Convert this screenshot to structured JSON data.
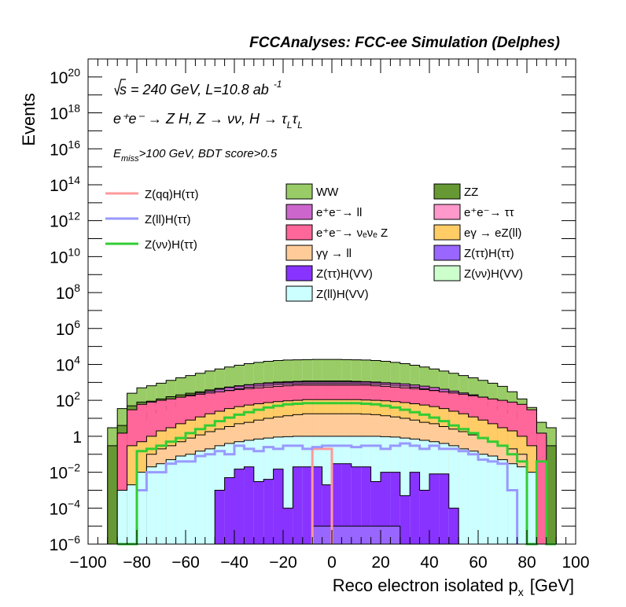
{
  "header": {
    "title": "FCCAnalyses: FCC-ee Simulation (Delphes)"
  },
  "annotations": {
    "energy_prefix": "√s",
    "energy_rest": " = 240 GeV, L=10.8 ab",
    "energy_sup": "-1",
    "process": "e⁺e⁻ → Z H, Z → νν, H → τ",
    "process_sub1": "L",
    "process_tau2": "τ",
    "process_sub2": "L",
    "cut_prefix": "E",
    "cut_sub": "miss",
    "cut_rest": ">100 GeV, BDT score>0.5"
  },
  "colors": {
    "WW": "#99cc66",
    "ZZ": "#669933",
    "ee_ll": "#cc66cc",
    "ee_tautau": "#ff99cc",
    "ee_nunuZ": "#ff6699",
    "egamma_eZ": "#ffcc66",
    "gammagamma_ll": "#ffcc99",
    "Ztautau_Htautau": "#9966ff",
    "Ztautau_HVV": "#8833ff",
    "Znunu_HVV": "#ccffcc",
    "Zll_HVV": "#ccffff",
    "sig_qq": "#ff9999",
    "sig_ll": "#9999ff",
    "sig_nunu": "#33cc33"
  },
  "chart_data": {
    "type": "histogram",
    "title": "FCCAnalyses: FCC-ee Simulation (Delphes)",
    "xlabel": "Reco electron isolated p",
    "xlabel_sub": "x",
    "xlabel_unit": "[GeV]",
    "ylabel": "Events",
    "xlim": [
      -100,
      100
    ],
    "ylim": [
      1e-06,
      1e+21
    ],
    "yscale": "log",
    "bin_width": 4,
    "x_ticks": [
      "−100",
      "−80",
      "−60",
      "−40",
      "−20",
      "0",
      "20",
      "40",
      "60",
      "80",
      "100"
    ],
    "y_ticks": [
      {
        "base": "10",
        "exp": "−6",
        "value": 1e-06
      },
      {
        "base": "10",
        "exp": "−4",
        "value": 0.0001
      },
      {
        "base": "10",
        "exp": "−2",
        "value": 0.01
      },
      {
        "base": "1",
        "exp": "",
        "value": 1
      },
      {
        "base": "10",
        "exp": "2",
        "value": 100.0
      },
      {
        "base": "10",
        "exp": "4",
        "value": 10000.0
      },
      {
        "base": "10",
        "exp": "6",
        "value": 1000000.0
      },
      {
        "base": "10",
        "exp": "8",
        "value": 100000000.0
      },
      {
        "base": "10",
        "exp": "10",
        "value": 10000000000.0
      },
      {
        "base": "10",
        "exp": "12",
        "value": 1000000000000.0
      },
      {
        "base": "10",
        "exp": "14",
        "value": 100000000000000.0
      },
      {
        "base": "10",
        "exp": "16",
        "value": 1e+16
      },
      {
        "base": "10",
        "exp": "18",
        "value": 1e+18
      },
      {
        "base": "10",
        "exp": "20",
        "value": 1e+20
      }
    ],
    "stack_envelopes": [
      {
        "name": "WW",
        "color_key": "WW",
        "x": [
          -92,
          -88,
          -84,
          -80,
          -76,
          -72,
          -68,
          -64,
          -60,
          -56,
          -52,
          -48,
          -44,
          -40,
          -36,
          -32,
          -28,
          -24,
          -20,
          -16,
          -12,
          -8,
          -4,
          0,
          4,
          8,
          12,
          16,
          20,
          24,
          28,
          32,
          36,
          40,
          44,
          48,
          52,
          56,
          60,
          64,
          68,
          72,
          76,
          80,
          84,
          88
        ],
        "values": [
          3,
          35,
          250,
          500,
          650,
          900,
          1300,
          1800,
          2400,
          3200,
          4300,
          5600,
          7200,
          9000,
          11000,
          13000,
          15000,
          16500,
          17500,
          18000,
          18500,
          19000,
          19000,
          19000,
          18500,
          18000,
          17500,
          16500,
          15000,
          13000,
          11000,
          9000,
          7200,
          5600,
          4300,
          3200,
          2400,
          1800,
          1300,
          900,
          600,
          300,
          120,
          40,
          6,
          3
        ]
      },
      {
        "name": "ZZ (cumulative incl. e+e-→ll, e+e-→ττ)",
        "color_key": "ZZ",
        "x": [
          -92,
          -88,
          -84,
          -80,
          -76,
          -72,
          -68,
          -64,
          -60,
          -56,
          -52,
          -48,
          -44,
          -40,
          -36,
          -32,
          -28,
          -24,
          -20,
          -16,
          -12,
          -8,
          -4,
          0,
          4,
          8,
          12,
          16,
          20,
          24,
          28,
          32,
          36,
          40,
          44,
          48,
          52,
          56,
          60,
          64,
          68,
          72,
          76,
          80,
          84,
          88
        ],
        "values": [
          0.3,
          4,
          50,
          80,
          90,
          120,
          160,
          200,
          250,
          300,
          380,
          460,
          550,
          650,
          750,
          850,
          950,
          1050,
          1100,
          1150,
          1200,
          1200,
          1200,
          1200,
          1200,
          1150,
          1100,
          1050,
          950,
          850,
          750,
          650,
          550,
          460,
          380,
          300,
          250,
          200,
          150,
          110,
          80,
          50,
          20,
          8,
          1,
          0.3
        ]
      },
      {
        "name": "e+e- → ll (cumulative)",
        "color_key": "ee_ll",
        "x": [
          -84,
          -80,
          -76,
          -72,
          -68,
          -64,
          -60,
          -56,
          -52,
          -48,
          -44,
          -40,
          -36,
          -32,
          -28,
          -24,
          -20,
          -16,
          -12,
          -8,
          -4,
          0,
          4,
          8,
          12,
          16,
          20,
          24,
          28,
          32,
          36,
          40,
          44,
          48,
          52,
          56,
          60,
          64,
          68,
          72,
          76,
          80
        ],
        "values": [
          8,
          40,
          60,
          80,
          110,
          150,
          200,
          260,
          330,
          420,
          520,
          620,
          720,
          820,
          900,
          950,
          1000,
          1050,
          1050,
          1050,
          1050,
          1050,
          1050,
          1050,
          1050,
          1000,
          950,
          900,
          820,
          720,
          620,
          520,
          420,
          330,
          260,
          200,
          150,
          110,
          80,
          60,
          40,
          8
        ]
      },
      {
        "name": "e+e- → ττ (cumulative)",
        "color_key": "ee_tautau",
        "x": [
          -84,
          -80,
          -76,
          -72,
          -68,
          -64,
          -60,
          -56,
          -52,
          -48,
          -44,
          -40,
          -36,
          -32,
          -28,
          -24,
          -20,
          -16,
          -12,
          -8,
          -4,
          0,
          4,
          8,
          12,
          16,
          20,
          24,
          28,
          32,
          36,
          40,
          44,
          48,
          52,
          56,
          60,
          64,
          68,
          72,
          76,
          80
        ],
        "values": [
          1,
          8,
          20,
          30,
          45,
          70,
          100,
          150,
          200,
          280,
          360,
          450,
          540,
          630,
          700,
          760,
          800,
          830,
          850,
          850,
          850,
          850,
          850,
          850,
          830,
          800,
          760,
          700,
          630,
          540,
          450,
          360,
          280,
          200,
          150,
          100,
          70,
          45,
          30,
          20,
          8,
          1
        ]
      },
      {
        "name": "e+e- → ν_e ν_e Z (cumulative)",
        "color_key": "ee_nunuZ",
        "x": [
          -88,
          -84,
          -80,
          -76,
          -72,
          -68,
          -64,
          -60,
          -56,
          -52,
          -48,
          -44,
          -40,
          -36,
          -32,
          -28,
          -24,
          -20,
          -16,
          -12,
          -8,
          -4,
          0,
          4,
          8,
          12,
          16,
          20,
          24,
          28,
          32,
          36,
          40,
          44,
          48,
          52,
          56,
          60,
          64,
          68,
          72,
          76,
          80,
          84
        ],
        "values": [
          1.5,
          30,
          60,
          80,
          100,
          120,
          150,
          180,
          220,
          260,
          300,
          350,
          400,
          450,
          500,
          550,
          600,
          650,
          700,
          700,
          700,
          700,
          700,
          700,
          700,
          700,
          650,
          600,
          550,
          500,
          450,
          400,
          350,
          300,
          260,
          220,
          180,
          150,
          120,
          100,
          80,
          60,
          30,
          1.5
        ]
      },
      {
        "name": "eγ → eZ(ll) (cumulative)",
        "color_key": "egamma_eZ",
        "x": [
          -84,
          -80,
          -76,
          -72,
          -68,
          -64,
          -60,
          -56,
          -52,
          -48,
          -44,
          -40,
          -36,
          -32,
          -28,
          -24,
          -20,
          -16,
          -12,
          -8,
          -4,
          0,
          4,
          8,
          12,
          16,
          20,
          24,
          28,
          32,
          36,
          40,
          44,
          48,
          52,
          56,
          60,
          64,
          68,
          72,
          76,
          80
        ],
        "values": [
          0.3,
          0.5,
          1,
          2,
          3,
          5,
          8,
          12,
          18,
          25,
          35,
          45,
          55,
          65,
          75,
          85,
          95,
          100,
          110,
          110,
          110,
          110,
          110,
          110,
          105,
          100,
          95,
          85,
          75,
          65,
          55,
          45,
          35,
          25,
          18,
          12,
          8,
          5,
          3,
          2,
          1,
          0.3
        ]
      },
      {
        "name": "γγ → ll (cumulative)",
        "color_key": "gammagamma_ll",
        "x": [
          -76,
          -72,
          -68,
          -64,
          -60,
          -56,
          -52,
          -48,
          -44,
          -40,
          -36,
          -32,
          -28,
          -24,
          -20,
          -16,
          -12,
          -8,
          -4,
          0,
          4,
          8,
          12,
          16,
          20,
          24,
          28,
          32,
          36,
          40,
          44,
          48,
          52,
          56,
          60,
          64,
          68,
          72,
          76
        ],
        "values": [
          0.1,
          0.2,
          0.3,
          0.5,
          0.8,
          1.2,
          1.8,
          2.5,
          3.5,
          5,
          6,
          8,
          10,
          12,
          14,
          16,
          18,
          18,
          18,
          18,
          18,
          18,
          17,
          16,
          14,
          12,
          10,
          8,
          6,
          5,
          3.5,
          2.5,
          1.8,
          1.2,
          0.8,
          0.5,
          0.3,
          0.2,
          0.1
        ]
      },
      {
        "name": "Z(ll)H(VV) (cumulative)",
        "color_key": "Zll_HVV",
        "x": [
          -88,
          -84,
          -80,
          -76,
          -72,
          -68,
          -64,
          -60,
          -56,
          -52,
          -48,
          -44,
          -40,
          -36,
          -32,
          -28,
          -24,
          -20,
          -16,
          -12,
          -8,
          -4,
          0,
          4,
          8,
          12,
          16,
          20,
          24,
          28,
          32,
          36,
          40,
          44,
          48,
          52,
          56,
          60,
          64,
          68,
          72,
          76,
          80
        ],
        "values": [
          0.001,
          0.002,
          0.01,
          0.02,
          0.03,
          0.05,
          0.08,
          0.1,
          0.15,
          0.2,
          0.3,
          0.4,
          0.5,
          0.6,
          0.7,
          0.8,
          0.9,
          0.95,
          1,
          1,
          1,
          1,
          1,
          1,
          1,
          1,
          1,
          0.95,
          0.9,
          0.8,
          0.7,
          0.6,
          0.5,
          0.4,
          0.3,
          0.2,
          0.15,
          0.1,
          0.08,
          0.05,
          0.03,
          0.02,
          0.01
        ]
      },
      {
        "name": "Z(ττ)H(VV)",
        "color_key": "Ztautau_HVV",
        "x": [
          -48,
          -44,
          -40,
          -36,
          -32,
          -28,
          -24,
          -20,
          -16,
          -12,
          -8,
          -4,
          0,
          4,
          8,
          12,
          16,
          20,
          24,
          28,
          32,
          36,
          40,
          44,
          48
        ],
        "values": [
          0.001,
          0.005,
          0.015,
          0.02,
          0.003,
          0.004,
          0.015,
          0.0001,
          0.02,
          0.02,
          0.02,
          0.002,
          0.03,
          0.03,
          0.02,
          0.02,
          0.003,
          0.01,
          0.01,
          0.0005,
          0.01,
          0.001,
          0.008,
          0.008,
          0.0001
        ]
      },
      {
        "name": "Z(ττ)H(ττ)",
        "color_key": "Ztautau_Htautau",
        "x": [
          -8,
          -4,
          0,
          4,
          8,
          12,
          16,
          20,
          24
        ],
        "values": [
          1e-05,
          1e-05,
          1e-05,
          1e-05,
          1e-05,
          1e-05,
          1e-05,
          1e-05,
          1e-05
        ]
      }
    ],
    "signal_lines": [
      {
        "name": "Z(qq)H(ττ)",
        "color_key": "sig_qq",
        "x": [
          -8,
          -4
        ],
        "values": [
          0.2,
          0.2
        ]
      },
      {
        "name": "Z(ll)H(ττ)",
        "color_key": "sig_ll",
        "x": [
          -80,
          -76,
          -72,
          -68,
          -64,
          -60,
          -56,
          -52,
          -48,
          -44,
          -40,
          -36,
          -32,
          -28,
          -24,
          -20,
          -16,
          -12,
          -8,
          -4,
          0,
          4,
          8,
          12,
          16,
          20,
          24,
          28,
          32,
          36,
          40,
          44,
          48,
          52,
          56,
          60,
          64,
          68,
          72
        ],
        "values": [
          0.001,
          0.01,
          0.01,
          0.03,
          0.04,
          0.04,
          0.08,
          0.1,
          0.15,
          0.1,
          0.3,
          0.2,
          0.15,
          0.25,
          0.2,
          0.3,
          0.3,
          0.2,
          0.25,
          0.3,
          0.3,
          0.3,
          0.25,
          0.3,
          0.3,
          0.2,
          0.3,
          0.4,
          0.3,
          0.2,
          0.3,
          0.2,
          0.2,
          0.15,
          0.1,
          0.05,
          0.04,
          0.03,
          0.001
        ]
      },
      {
        "name": "Z(νν)H(ττ)",
        "color_key": "sig_nunu",
        "x": [
          -88,
          -84,
          -80,
          -76,
          -72,
          -68,
          -64,
          -60,
          -56,
          -52,
          -48,
          -44,
          -40,
          -36,
          -32,
          -28,
          -24,
          -20,
          -16,
          -12,
          -8,
          -4,
          0,
          4,
          8,
          12,
          16,
          20,
          24,
          28,
          32,
          36,
          40,
          44,
          48,
          52,
          56,
          60,
          64,
          68,
          72,
          76,
          80,
          84,
          88
        ],
        "values": [
          1e-06,
          1e-06,
          0.15,
          0.2,
          0.3,
          0.5,
          0.8,
          1.5,
          2.5,
          4,
          7,
          11,
          16,
          22,
          30,
          40,
          50,
          60,
          65,
          70,
          70,
          70,
          70,
          70,
          70,
          65,
          60,
          50,
          40,
          30,
          22,
          16,
          11,
          7,
          4,
          2.5,
          1.5,
          0.8,
          0.5,
          0.3,
          0.1,
          0.04,
          1e-06,
          0.04,
          1e-06
        ]
      }
    ],
    "legend_left": [
      {
        "label": "Z(qq)H(ττ)",
        "color_key": "sig_qq"
      },
      {
        "label": "Z(ll)H(ττ)",
        "color_key": "sig_ll"
      },
      {
        "label": "Z(νν)H(ττ)",
        "color_key": "sig_nunu"
      }
    ],
    "legend_right": [
      {
        "label": "WW",
        "color_key": "WW"
      },
      {
        "label": "ZZ",
        "color_key": "ZZ"
      },
      {
        "label": "e⁺e⁻→ ll",
        "color_key": "ee_ll"
      },
      {
        "label": "e⁺e⁻→ ττ",
        "color_key": "ee_tautau"
      },
      {
        "label": "e⁺e⁻→ νₑνₑ Z",
        "color_key": "ee_nunuZ"
      },
      {
        "label": "eγ → eZ(ll)",
        "color_key": "egamma_eZ"
      },
      {
        "label": "γγ → ll",
        "color_key": "gammagamma_ll"
      },
      {
        "label": "Z(ττ)H(ττ)",
        "color_key": "Ztautau_Htautau"
      },
      {
        "label": "Z(ττ)H(VV)",
        "color_key": "Ztautau_HVV"
      },
      {
        "label": "Z(νν)H(VV)",
        "color_key": "Znunu_HVV"
      },
      {
        "label": "Z(ll)H(VV)",
        "color_key": "Zll_HVV"
      }
    ]
  }
}
